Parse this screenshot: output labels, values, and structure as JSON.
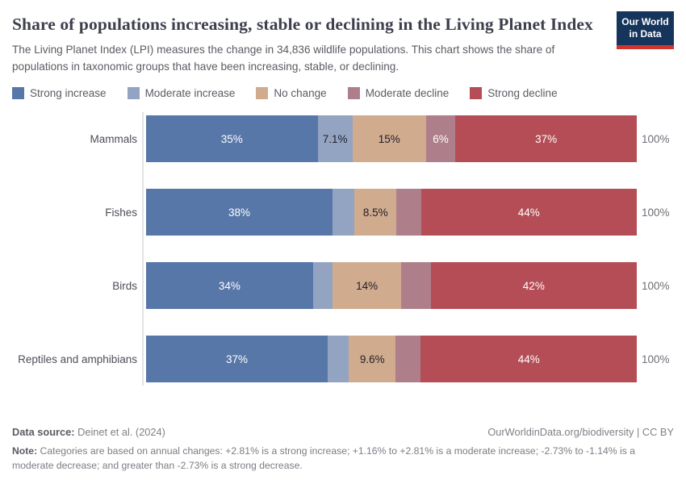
{
  "logo": {
    "line1": "Our World",
    "line2": "in Data"
  },
  "header": {
    "title": "Share of populations increasing, stable or declining in the Living Planet Index",
    "subtitle": "The Living Planet Index (LPI) measures the change in 34,836 wildlife populations. This chart shows the share of populations in taxonomic groups that have been increasing, stable, or declining."
  },
  "chart_data": {
    "type": "bar",
    "orientation": "horizontal-stacked",
    "categories": [
      "Mammals",
      "Fishes",
      "Birds",
      "Reptiles and amphibians"
    ],
    "series": [
      {
        "name": "Strong increase",
        "color": "#5777a8",
        "label_color": "#ffffff",
        "values": [
          35,
          38,
          34,
          37
        ],
        "labels": [
          "35%",
          "38%",
          "34%",
          "37%"
        ]
      },
      {
        "name": "Moderate increase",
        "color": "#93a4c3",
        "label_color": "#20202a",
        "values": [
          7.1,
          4.5,
          4,
          4.3
        ],
        "labels": [
          "7.1%",
          "",
          "",
          ""
        ]
      },
      {
        "name": "No change",
        "color": "#d1ab8e",
        "label_color": "#20202a",
        "values": [
          15,
          8.5,
          14,
          9.6
        ],
        "labels": [
          "15%",
          "8.5%",
          "14%",
          "9.6%"
        ]
      },
      {
        "name": "Moderate decline",
        "color": "#ae7f8b",
        "label_color": "#ffffff",
        "values": [
          6,
          5,
          6,
          5.1
        ],
        "labels": [
          "6%",
          "",
          "",
          ""
        ]
      },
      {
        "name": "Strong decline",
        "color": "#b54d56",
        "label_color": "#ffffff",
        "values": [
          37,
          44,
          42,
          44
        ],
        "labels": [
          "37%",
          "44%",
          "42%",
          "44%"
        ]
      }
    ],
    "row_total_label": "100%",
    "xlim": [
      0,
      100
    ],
    "grid": false,
    "legend_position": "top"
  },
  "footer": {
    "source_label": "Data source:",
    "source_value": " Deinet et al. (2024)",
    "citation": "OurWorldinData.org/biodiversity | CC BY",
    "note_label": "Note:",
    "note_value": " Categories are based on annual changes: +2.81% is a strong increase; +1.16% to +2.81% is a moderate increase; -2.73% to -1.14% is a moderate decrease; and greater than -2.73% is a strong decrease."
  }
}
